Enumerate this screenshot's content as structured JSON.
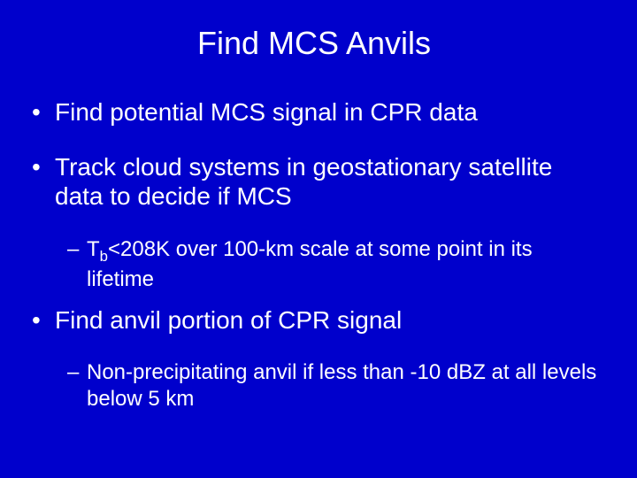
{
  "title": "Find MCS Anvils",
  "bullets": {
    "b1": "Find potential MCS signal in CPR data",
    "b2": "Track cloud systems in geostationary satellite data to decide if MCS",
    "b2sub_pre": "T",
    "b2sub_sub": "b",
    "b2sub_post": "<208K over 100-km scale at some point in its lifetime",
    "b3": "Find anvil portion of CPR signal",
    "b3sub": "Non-precipitating anvil if less than -10 dBZ at all levels below 5 km"
  },
  "colors": {
    "background": "#0000cc",
    "text": "#ffffff"
  },
  "typography": {
    "title_fontsize": 36,
    "bullet_fontsize": 28,
    "sub_fontsize": 24,
    "font_family": "Arial"
  }
}
